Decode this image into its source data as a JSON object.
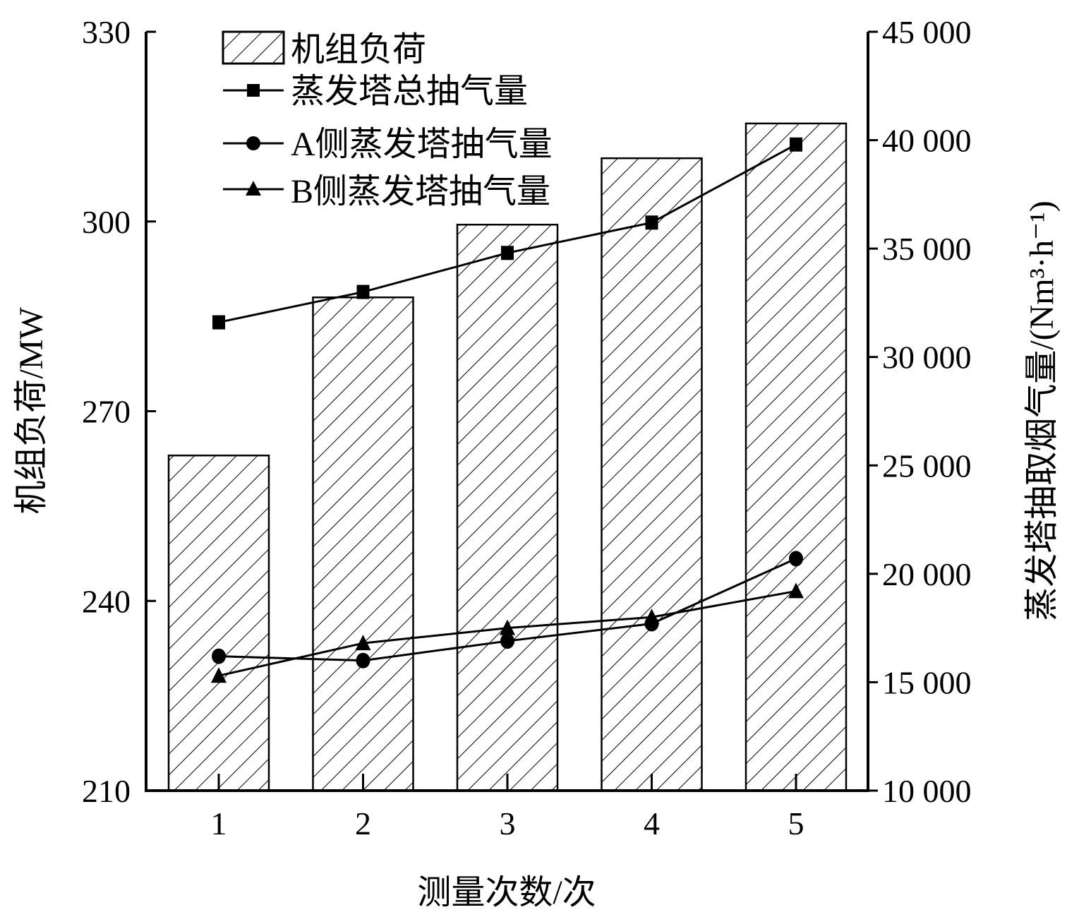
{
  "chart_data": {
    "type": "bar",
    "categories": [
      "1",
      "2",
      "3",
      "4",
      "5"
    ],
    "xlabel": "测量次数/次",
    "ylabel_left": "机组负荷/MW",
    "ylabel_right": "蒸发塔抽取烟气量/(Nm³·h⁻¹)",
    "ylim_left": [
      210,
      330
    ],
    "ylim_right": [
      10000,
      45000
    ],
    "left_ticks": [
      "210",
      "240",
      "270",
      "300",
      "330"
    ],
    "right_ticks": [
      "10 000",
      "15 000",
      "20 000",
      "25 000",
      "30 000",
      "35 000",
      "40 000",
      "45 000"
    ],
    "legend_position": "top-left",
    "series": [
      {
        "name": "机组负荷",
        "kind": "bar",
        "axis": "left",
        "pattern": "hatch",
        "values": [
          263,
          288,
          299.5,
          310,
          315.5
        ]
      },
      {
        "name": "蒸发塔总抽气量",
        "kind": "line",
        "axis": "right",
        "marker": "square",
        "values": [
          31600,
          33000,
          34800,
          36200,
          39800
        ]
      },
      {
        "name": "A侧蒸发塔抽气量",
        "kind": "line",
        "axis": "right",
        "marker": "circle",
        "values": [
          16200,
          16000,
          16900,
          17700,
          20700
        ]
      },
      {
        "name": "B侧蒸发塔抽气量",
        "kind": "line",
        "axis": "right",
        "marker": "triangle",
        "values": [
          15300,
          16800,
          17500,
          18000,
          19200
        ]
      }
    ]
  }
}
